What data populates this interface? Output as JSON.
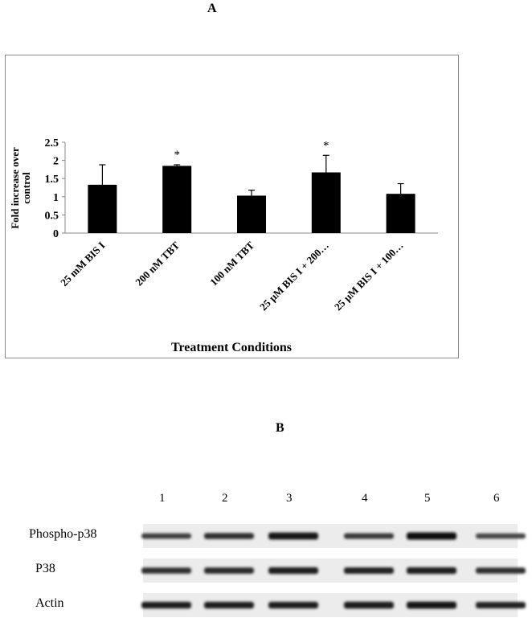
{
  "panel_a_label": "A",
  "panel_b_label": "B",
  "chart_data": {
    "type": "bar",
    "title": "",
    "xlabel": "Treatment Conditions",
    "ylabel": "Fold increase over control",
    "ylabel_lines": [
      "Fold increase over",
      "control"
    ],
    "ylim": [
      0,
      2.5
    ],
    "yticks": [
      "0",
      "0.5",
      "1",
      "1.5",
      "2",
      "2.5"
    ],
    "categories": [
      "25 mM BIS I",
      "200 nM TBT",
      "100 nM TBT",
      "25 µM BIS I + 200…",
      "25 µM BIS I + 100…"
    ],
    "values": [
      1.33,
      1.85,
      1.03,
      1.67,
      1.08
    ],
    "errors": [
      0.55,
      0.03,
      0.15,
      0.47,
      0.28
    ],
    "significance": [
      "",
      "*",
      "",
      "*",
      ""
    ],
    "color": "#000000",
    "grid": false,
    "legend": "none"
  },
  "blot": {
    "lanes": [
      "1",
      "2",
      "3",
      "4",
      "5",
      "6"
    ],
    "rows": [
      {
        "label": "Phospho-p38",
        "intensities": [
          0.55,
          0.7,
          0.95,
          0.6,
          1.0,
          0.5
        ]
      },
      {
        "label": "P38",
        "intensities": [
          0.7,
          0.75,
          0.85,
          0.8,
          0.85,
          0.7
        ]
      },
      {
        "label": "Actin",
        "intensities": [
          0.85,
          0.85,
          0.85,
          0.9,
          0.95,
          0.8
        ]
      }
    ]
  }
}
